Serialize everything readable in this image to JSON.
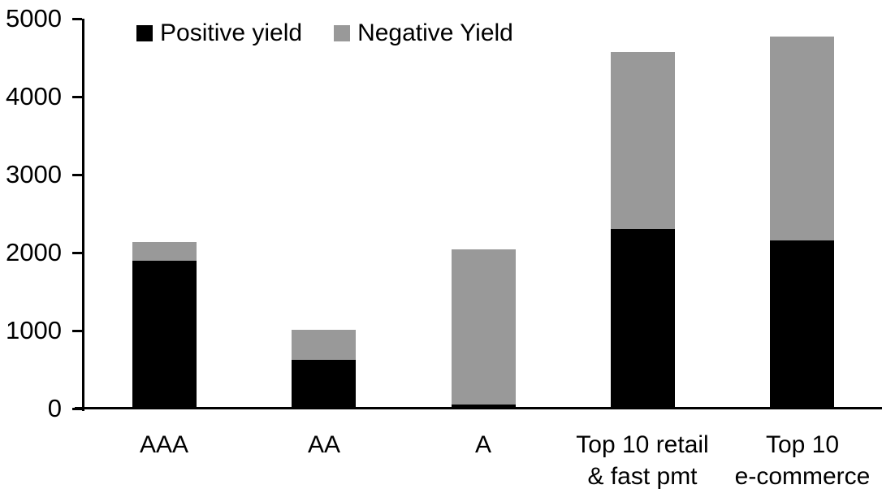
{
  "chart_data": {
    "type": "bar",
    "stacked": true,
    "title": "",
    "xlabel": "",
    "ylabel": "",
    "grid": false,
    "legend_position": "top-left",
    "categories": [
      "AAA",
      "AA",
      "A",
      "Top 10 retail\n& fast pmt",
      "Top 10\ne-commerce"
    ],
    "series": [
      {
        "name": "Positive yield",
        "color": "#000000",
        "values": [
          1900,
          630,
          50,
          2300,
          2160
        ]
      },
      {
        "name": "Negative Yield",
        "color": "#999999",
        "values": [
          240,
          380,
          1990,
          2270,
          2610
        ]
      }
    ],
    "stacked_totals": [
      2140,
      1010,
      2040,
      4570,
      4770
    ],
    "ylim": [
      0,
      5000
    ],
    "yticks": [
      0,
      1000,
      2000,
      3000,
      4000,
      5000
    ],
    "ytick_labels": [
      "0",
      "1000",
      "2000",
      "3000",
      "4000",
      "5000"
    ],
    "axis_color": "#000000"
  }
}
